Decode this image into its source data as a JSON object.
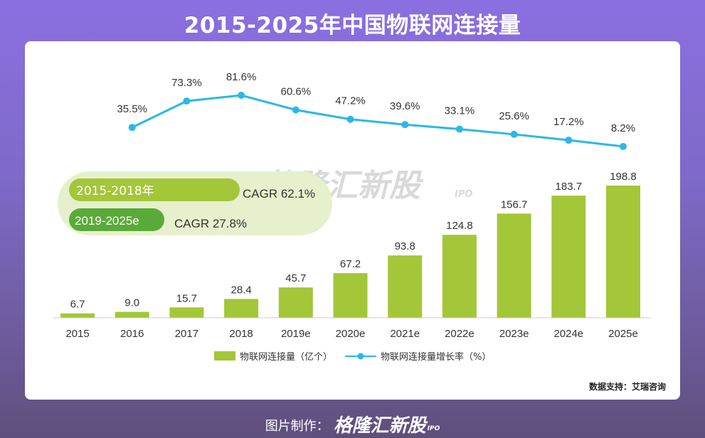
{
  "title": "2015-2025年中国物联网连接量",
  "watermark": "格隆汇新股",
  "watermark_sub": "IPO",
  "source": "数据支持：艾瑞咨询",
  "footer": {
    "label": "图片制作：",
    "brand": "格隆汇新股",
    "brand_sub": "IPO"
  },
  "colors": {
    "bar": "#a4c639",
    "line": "#2ab8e6",
    "cagr1": "#a4c639",
    "cagr2": "#5aaa3a",
    "cagr_bg": "#e6f0cc"
  },
  "cagr": [
    {
      "period": "2015-2018年",
      "value": "CAGR 62.1%"
    },
    {
      "period": "2019-2025e",
      "value": "CAGR 27.8%"
    }
  ],
  "chart_data": {
    "type": "bar",
    "categories": [
      "2015",
      "2016",
      "2017",
      "2018",
      "2019e",
      "2020e",
      "2021e",
      "2022e",
      "2023e",
      "2024e",
      "2025e"
    ],
    "series": [
      {
        "name": "物联网连接量（亿个）",
        "type": "bar",
        "values": [
          6.7,
          9.0,
          15.7,
          28.4,
          45.7,
          67.2,
          93.8,
          124.8,
          156.7,
          183.7,
          198.8
        ],
        "labels": [
          "6.7",
          "9.0",
          "15.7",
          "28.4",
          "45.7",
          "67.2",
          "93.8",
          "124.8",
          "156.7",
          "183.7",
          "198.8"
        ]
      },
      {
        "name": "物联网连接量增长率（%）",
        "type": "line",
        "values": [
          null,
          35.5,
          73.3,
          81.6,
          60.6,
          47.2,
          39.6,
          33.1,
          25.6,
          17.2,
          8.2
        ],
        "labels": [
          "",
          "35.5%",
          "73.3%",
          "81.6%",
          "60.6%",
          "47.2%",
          "39.6%",
          "33.1%",
          "25.6%",
          "17.2%",
          "8.2%"
        ]
      }
    ],
    "legend_position": "bottom",
    "grid": false
  }
}
